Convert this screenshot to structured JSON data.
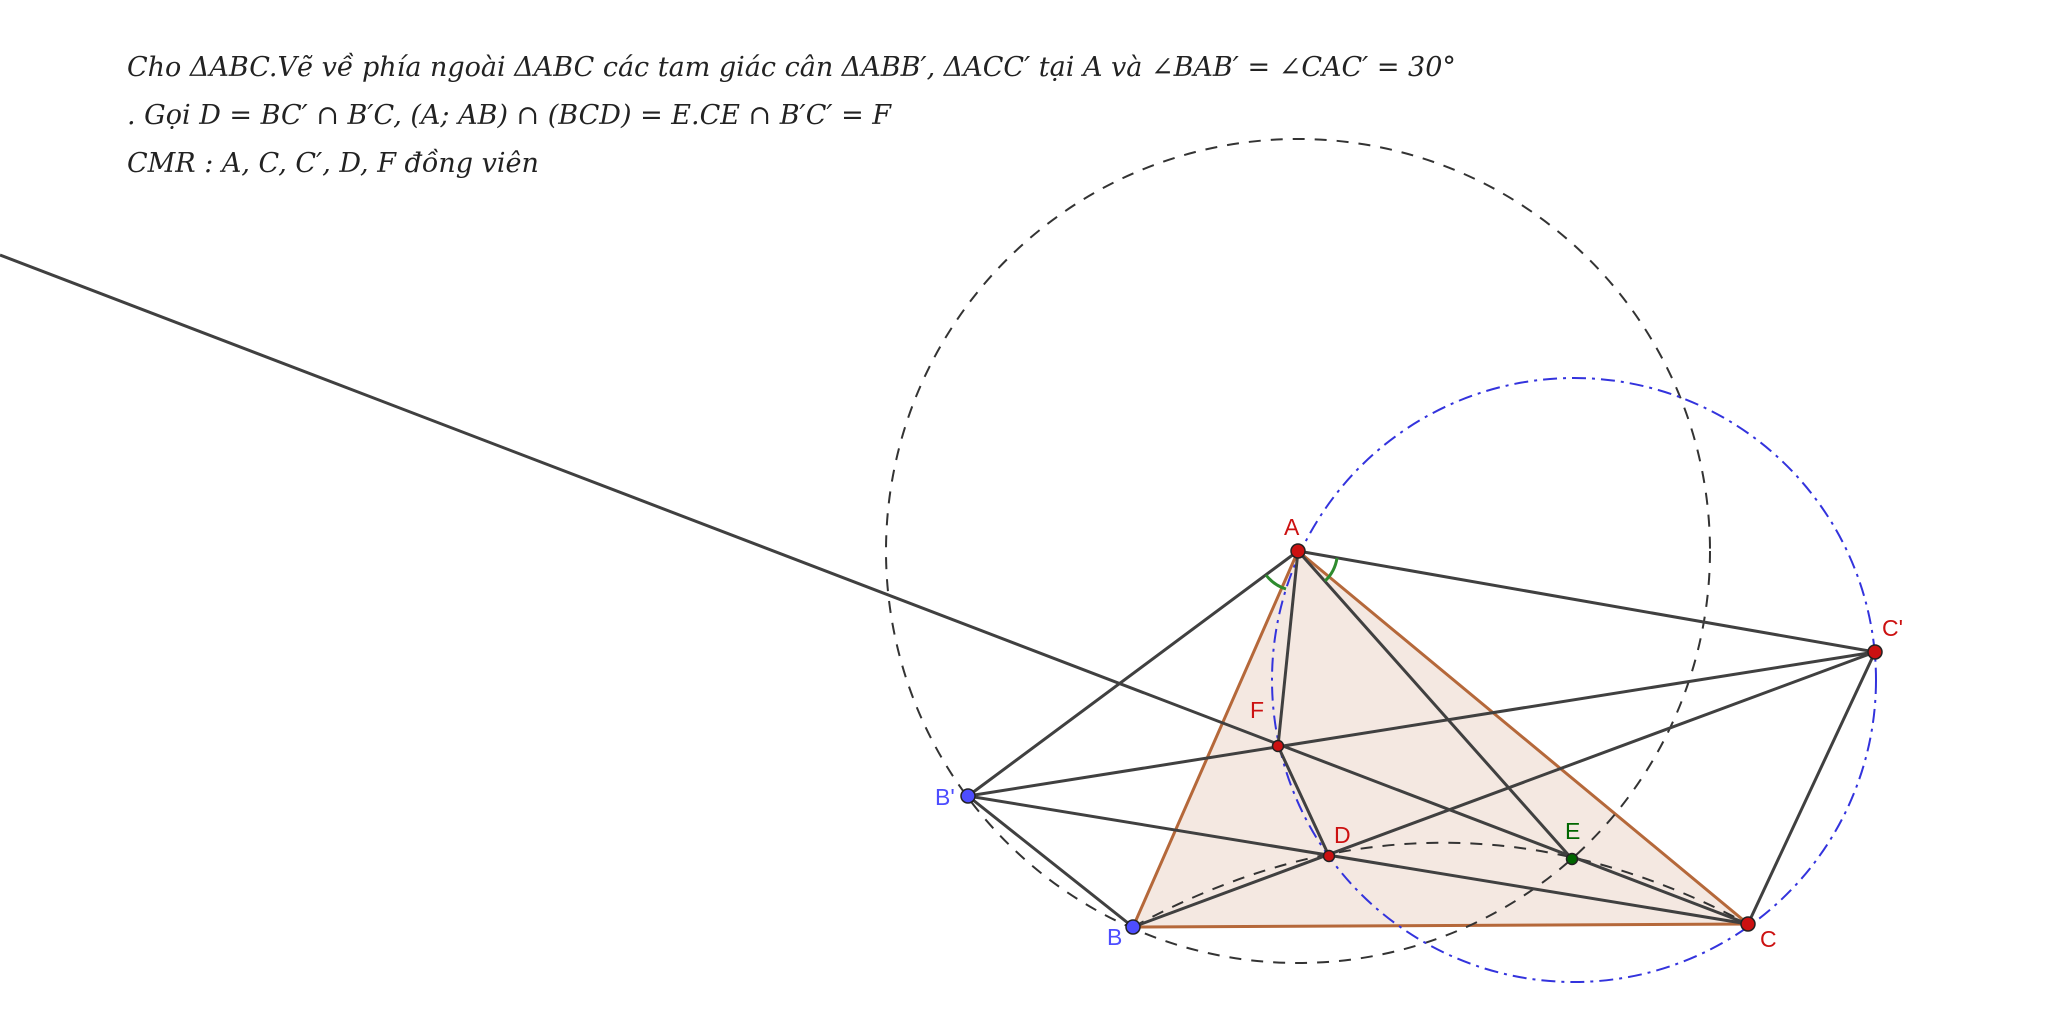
{
  "problem": {
    "line1": "Cho ΔABC.Vẽ về phía ngoài ΔABC các tam giác cân ΔABB′, ΔACC′ tại A và ∠BAB′ = ∠CAC′ = 30°",
    "line2": ". Gọi D = BC′ ∩ B′C, (A; AB) ∩ (BCD) = E.CE ∩ B′C′ = F",
    "line3": "CMR :  A, C, C′, D, F đồng viên"
  },
  "labels": {
    "A": "A",
    "B": "B",
    "C": "C",
    "B_prime": "B'",
    "C_prime": "C'",
    "D": "D",
    "E": "E",
    "F": "F"
  },
  "colors": {
    "red_point": "#cc1111",
    "blue_point": "#4d4dff",
    "green_point": "#006600",
    "triangle_fill": "#f4e8e1",
    "triangle_stroke": "#b5683a",
    "segment": "#404040",
    "circle_black": "#333333",
    "circle_blue": "#3333dd",
    "angle_mark": "#2e8b2e"
  }
}
